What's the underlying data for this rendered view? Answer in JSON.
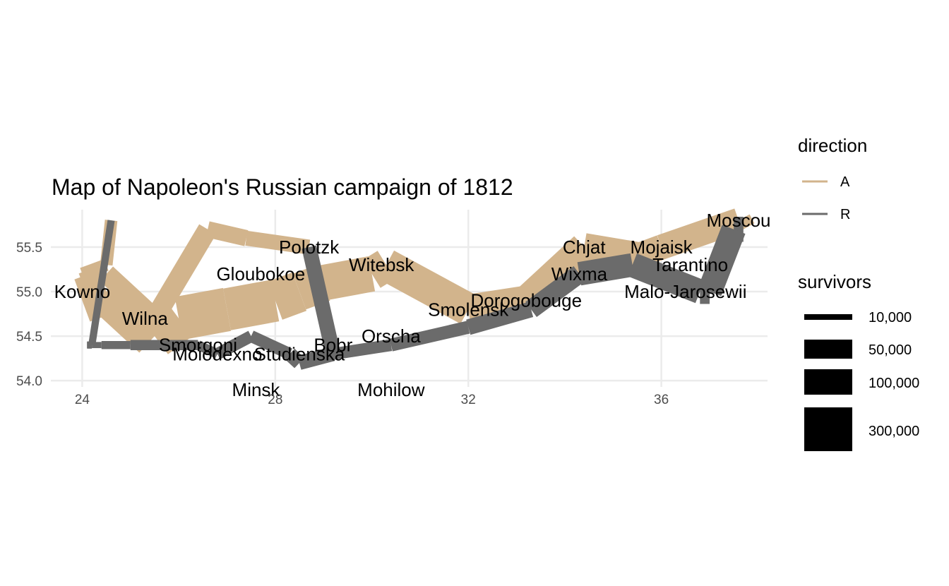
{
  "chart_data": {
    "type": "path-map",
    "title": "Map of Napoleon's Russian campaign of 1812",
    "xlabel": "",
    "ylabel": "",
    "xlim": [
      23.35,
      38.2
    ],
    "ylim": [
      53.93,
      55.92
    ],
    "x_ticks": [
      24,
      28,
      32,
      36
    ],
    "y_ticks": [
      54.0,
      54.5,
      55.0,
      55.5
    ],
    "x_tick_labels": [
      "24",
      "28",
      "32",
      "36"
    ],
    "y_tick_labels": [
      "54.0",
      "54.5",
      "55.0",
      "55.5"
    ],
    "grid": true,
    "colors": {
      "A": "#d2b48c",
      "R": "#6b6b6b"
    },
    "series": [
      {
        "name": "A",
        "group": 1,
        "points": [
          {
            "x": 24.0,
            "y": 54.9,
            "survivors": 340000
          },
          {
            "x": 24.5,
            "y": 55.0,
            "survivors": 340000
          },
          {
            "x": 25.5,
            "y": 54.5,
            "survivors": 340000
          },
          {
            "x": 26.0,
            "y": 54.7,
            "survivors": 320000
          },
          {
            "x": 27.0,
            "y": 54.8,
            "survivors": 300000
          },
          {
            "x": 28.0,
            "y": 54.9,
            "survivors": 280000
          },
          {
            "x": 28.5,
            "y": 55.0,
            "survivors": 240000
          },
          {
            "x": 29.0,
            "y": 55.1,
            "survivors": 210000
          },
          {
            "x": 30.0,
            "y": 55.2,
            "survivors": 180000
          },
          {
            "x": 30.3,
            "y": 55.3,
            "survivors": 175000
          },
          {
            "x": 32.0,
            "y": 54.8,
            "survivors": 145000
          },
          {
            "x": 33.2,
            "y": 54.9,
            "survivors": 140000
          },
          {
            "x": 34.4,
            "y": 55.5,
            "survivors": 127100
          },
          {
            "x": 35.5,
            "y": 55.4,
            "survivors": 100000
          },
          {
            "x": 36.0,
            "y": 55.5,
            "survivors": 100000
          },
          {
            "x": 37.6,
            "y": 55.8,
            "survivors": 100000
          },
          {
            "x": 37.7,
            "y": 55.7,
            "survivors": 100000
          }
        ]
      },
      {
        "name": "R",
        "group": 1,
        "points": [
          {
            "x": 37.7,
            "y": 55.7,
            "survivors": 100000
          },
          {
            "x": 37.5,
            "y": 55.7,
            "survivors": 98000
          },
          {
            "x": 37.0,
            "y": 55.0,
            "survivors": 97000
          },
          {
            "x": 36.8,
            "y": 55.0,
            "survivors": 96000
          },
          {
            "x": 35.4,
            "y": 55.3,
            "survivors": 87000
          },
          {
            "x": 34.3,
            "y": 55.2,
            "survivors": 55000
          },
          {
            "x": 33.3,
            "y": 54.8,
            "survivors": 37000
          },
          {
            "x": 32.0,
            "y": 54.6,
            "survivors": 24000
          },
          {
            "x": 30.4,
            "y": 54.4,
            "survivors": 20000
          },
          {
            "x": 29.2,
            "y": 54.3,
            "survivors": 20000
          },
          {
            "x": 28.5,
            "y": 54.2,
            "survivors": 20000
          },
          {
            "x": 28.3,
            "y": 54.3,
            "survivors": 20000
          },
          {
            "x": 27.5,
            "y": 54.5,
            "survivors": 20000
          },
          {
            "x": 26.8,
            "y": 54.3,
            "survivors": 12000
          },
          {
            "x": 26.4,
            "y": 54.4,
            "survivors": 14000
          },
          {
            "x": 25.0,
            "y": 54.4,
            "survivors": 8000
          },
          {
            "x": 24.4,
            "y": 54.4,
            "survivors": 4000
          },
          {
            "x": 24.2,
            "y": 54.4,
            "survivors": 4000
          },
          {
            "x": 24.1,
            "y": 54.4,
            "survivors": 4000
          }
        ]
      },
      {
        "name": "A",
        "group": 2,
        "points": [
          {
            "x": 24.0,
            "y": 55.1,
            "survivors": 60000
          },
          {
            "x": 24.5,
            "y": 55.2,
            "survivors": 60000
          },
          {
            "x": 25.5,
            "y": 54.7,
            "survivors": 60000
          },
          {
            "x": 26.6,
            "y": 55.7,
            "survivors": 40000
          },
          {
            "x": 27.4,
            "y": 55.6,
            "survivors": 33000
          },
          {
            "x": 28.7,
            "y": 55.5,
            "survivors": 33000
          }
        ]
      },
      {
        "name": "R",
        "group": 2,
        "points": [
          {
            "x": 28.7,
            "y": 55.5,
            "survivors": 33000
          },
          {
            "x": 29.2,
            "y": 54.3,
            "survivors": 30000
          },
          {
            "x": 28.5,
            "y": 54.2,
            "survivors": 30000
          },
          {
            "x": 28.3,
            "y": 54.3,
            "survivors": 28000
          }
        ]
      },
      {
        "name": "A",
        "group": 3,
        "points": [
          {
            "x": 24.0,
            "y": 55.2,
            "survivors": 22000
          },
          {
            "x": 24.5,
            "y": 55.3,
            "survivors": 22000
          },
          {
            "x": 24.6,
            "y": 55.8,
            "survivors": 6000
          }
        ]
      },
      {
        "name": "R",
        "group": 3,
        "points": [
          {
            "x": 24.6,
            "y": 55.8,
            "survivors": 6000
          },
          {
            "x": 24.2,
            "y": 54.4,
            "survivors": 6000
          },
          {
            "x": 24.1,
            "y": 54.4,
            "survivors": 6000
          }
        ]
      }
    ],
    "cities": [
      {
        "name": "Kowno",
        "x": 24.0,
        "y": 55.0
      },
      {
        "name": "Wilna",
        "x": 25.3,
        "y": 54.7
      },
      {
        "name": "Smorgoni",
        "x": 26.4,
        "y": 54.4
      },
      {
        "name": "Moiodexno",
        "x": 26.8,
        "y": 54.3
      },
      {
        "name": "Gloubokoe",
        "x": 27.7,
        "y": 55.2
      },
      {
        "name": "Minsk",
        "x": 27.6,
        "y": 53.9
      },
      {
        "name": "Studienska",
        "x": 28.5,
        "y": 54.3
      },
      {
        "name": "Polotzk",
        "x": 28.7,
        "y": 55.5
      },
      {
        "name": "Bobr",
        "x": 29.2,
        "y": 54.4
      },
      {
        "name": "Witebsk",
        "x": 30.2,
        "y": 55.3
      },
      {
        "name": "Orscha",
        "x": 30.4,
        "y": 54.5
      },
      {
        "name": "Mohilow",
        "x": 30.4,
        "y": 53.9
      },
      {
        "name": "Smolensk",
        "x": 32.0,
        "y": 54.8
      },
      {
        "name": "Dorogobouge",
        "x": 33.2,
        "y": 54.9
      },
      {
        "name": "Wixma",
        "x": 34.3,
        "y": 55.2
      },
      {
        "name": "Chjat",
        "x": 34.4,
        "y": 55.5
      },
      {
        "name": "Mojaisk",
        "x": 36.0,
        "y": 55.5
      },
      {
        "name": "Moscou",
        "x": 37.6,
        "y": 55.8
      },
      {
        "name": "Tarantino",
        "x": 36.6,
        "y": 55.3
      },
      {
        "name": "Malo-Jarosewii",
        "x": 36.5,
        "y": 55.0
      }
    ],
    "legend": {
      "placement": "right",
      "direction": {
        "title": "direction",
        "entries": [
          {
            "label": "A",
            "color": "#d2b48c"
          },
          {
            "label": "R",
            "color": "#6b6b6b"
          }
        ]
      },
      "survivors": {
        "title": "survivors",
        "entries": [
          {
            "label": "10,000",
            "value": 10000
          },
          {
            "label": "50,000",
            "value": 50000
          },
          {
            "label": "100,000",
            "value": 100000
          },
          {
            "label": "300,000",
            "value": 300000
          }
        ]
      }
    }
  }
}
